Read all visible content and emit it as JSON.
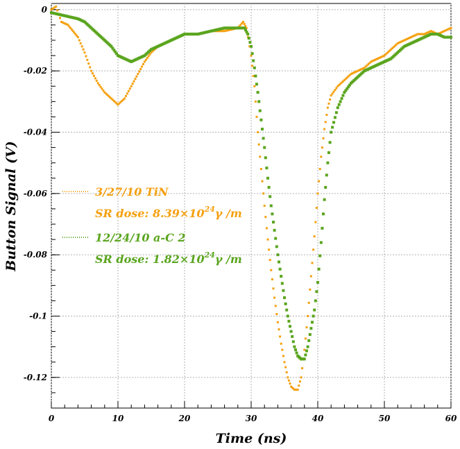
{
  "chart_data": {
    "type": "scatter",
    "xlabel": "Time (ns)",
    "ylabel": "Button Signal (V)",
    "xlim": [
      0,
      60
    ],
    "ylim": [
      -0.13,
      0.002
    ],
    "grid": true,
    "legend_position": "middle-left",
    "xticks": [
      0,
      10,
      20,
      30,
      40,
      50,
      60
    ],
    "xtick_labels": [
      "0",
      "10",
      "20",
      "30",
      "40",
      "50",
      "60"
    ],
    "yticks": [
      0,
      -0.02,
      -0.04,
      -0.06,
      -0.08,
      -0.1,
      -0.12
    ],
    "ytick_labels": [
      "0",
      "-0.02",
      "-0.04",
      "-0.06",
      "-0.08",
      "-0.1",
      "-0.12"
    ],
    "series": [
      {
        "name": "3/27/10 TiN",
        "dose_prefix": "SR dose: 8.39×10",
        "dose_exp": "24",
        "dose_suffix": "γ /m",
        "color": "#f5a00f",
        "points": [
          [
            0,
            0
          ],
          [
            0.7,
            0.001
          ],
          [
            1.5,
            -0.004
          ],
          [
            2.5,
            -0.005
          ],
          [
            4,
            -0.009
          ],
          [
            5,
            -0.014
          ],
          [
            6,
            -0.02
          ],
          [
            7,
            -0.024
          ],
          [
            8,
            -0.027
          ],
          [
            9,
            -0.029
          ],
          [
            10,
            -0.031
          ],
          [
            11,
            -0.029
          ],
          [
            12,
            -0.025
          ],
          [
            13,
            -0.021
          ],
          [
            14,
            -0.017
          ],
          [
            15,
            -0.014
          ],
          [
            16,
            -0.012
          ],
          [
            17,
            -0.011
          ],
          [
            18,
            -0.01
          ],
          [
            19,
            -0.009
          ],
          [
            20,
            -0.008
          ],
          [
            22,
            -0.008
          ],
          [
            24,
            -0.007
          ],
          [
            26,
            -0.007
          ],
          [
            28,
            -0.006
          ],
          [
            28.8,
            -0.004
          ],
          [
            29.3,
            -0.006
          ],
          [
            30,
            -0.015
          ],
          [
            30.5,
            -0.025
          ],
          [
            31,
            -0.04
          ],
          [
            31.5,
            -0.052
          ],
          [
            32,
            -0.064
          ],
          [
            32.5,
            -0.075
          ],
          [
            33,
            -0.085
          ],
          [
            33.5,
            -0.094
          ],
          [
            34,
            -0.102
          ],
          [
            34.5,
            -0.109
          ],
          [
            35,
            -0.115
          ],
          [
            35.5,
            -0.12
          ],
          [
            36,
            -0.123
          ],
          [
            36.5,
            -0.124
          ],
          [
            37,
            -0.124
          ],
          [
            37.5,
            -0.12
          ],
          [
            38,
            -0.111
          ],
          [
            38.5,
            -0.1
          ],
          [
            39,
            -0.087
          ],
          [
            39.5,
            -0.074
          ],
          [
            40,
            -0.06
          ],
          [
            40.5,
            -0.048
          ],
          [
            41,
            -0.039
          ],
          [
            41.5,
            -0.032
          ],
          [
            42,
            -0.028
          ],
          [
            43,
            -0.025
          ],
          [
            44,
            -0.023
          ],
          [
            45,
            -0.021
          ],
          [
            46,
            -0.02
          ],
          [
            47,
            -0.019
          ],
          [
            48,
            -0.017
          ],
          [
            49,
            -0.016
          ],
          [
            50,
            -0.015
          ],
          [
            51,
            -0.013
          ],
          [
            52,
            -0.011
          ],
          [
            53,
            -0.01
          ],
          [
            54,
            -0.009
          ],
          [
            55,
            -0.008
          ],
          [
            56,
            -0.008
          ],
          [
            57,
            -0.007
          ],
          [
            58,
            -0.008
          ],
          [
            59,
            -0.007
          ],
          [
            60,
            -0.006
          ]
        ]
      },
      {
        "name": "12/24/10 a-C 2",
        "dose_prefix": "SR dose: 1.82×10",
        "dose_exp": "24",
        "dose_suffix": "γ /m",
        "color": "#5aa51e",
        "points": [
          [
            0,
            -0.001
          ],
          [
            2,
            -0.002
          ],
          [
            4,
            -0.003
          ],
          [
            5,
            -0.004
          ],
          [
            6,
            -0.006
          ],
          [
            7,
            -0.008
          ],
          [
            8,
            -0.01
          ],
          [
            9,
            -0.012
          ],
          [
            10,
            -0.015
          ],
          [
            11,
            -0.016
          ],
          [
            12,
            -0.017
          ],
          [
            13,
            -0.016
          ],
          [
            14,
            -0.015
          ],
          [
            15,
            -0.013
          ],
          [
            16,
            -0.012
          ],
          [
            17,
            -0.011
          ],
          [
            18,
            -0.01
          ],
          [
            19,
            -0.009
          ],
          [
            20,
            -0.008
          ],
          [
            22,
            -0.008
          ],
          [
            24,
            -0.007
          ],
          [
            26,
            -0.006
          ],
          [
            28,
            -0.006
          ],
          [
            29,
            -0.006
          ],
          [
            29.5,
            -0.008
          ],
          [
            30,
            -0.012
          ],
          [
            30.5,
            -0.019
          ],
          [
            31,
            -0.027
          ],
          [
            31.5,
            -0.036
          ],
          [
            32,
            -0.045
          ],
          [
            32.5,
            -0.055
          ],
          [
            33,
            -0.064
          ],
          [
            33.5,
            -0.072
          ],
          [
            34,
            -0.08
          ],
          [
            34.5,
            -0.087
          ],
          [
            35,
            -0.094
          ],
          [
            35.5,
            -0.1
          ],
          [
            36,
            -0.105
          ],
          [
            36.5,
            -0.11
          ],
          [
            37,
            -0.113
          ],
          [
            37.5,
            -0.114
          ],
          [
            38,
            -0.114
          ],
          [
            38.5,
            -0.11
          ],
          [
            39,
            -0.104
          ],
          [
            39.5,
            -0.098
          ],
          [
            40,
            -0.089
          ],
          [
            40.5,
            -0.076
          ],
          [
            41,
            -0.062
          ],
          [
            41.5,
            -0.05
          ],
          [
            42,
            -0.04
          ],
          [
            43,
            -0.032
          ],
          [
            44,
            -0.027
          ],
          [
            45,
            -0.024
          ],
          [
            46,
            -0.022
          ],
          [
            47,
            -0.02
          ],
          [
            48,
            -0.019
          ],
          [
            49,
            -0.018
          ],
          [
            50,
            -0.017
          ],
          [
            51,
            -0.016
          ],
          [
            52,
            -0.014
          ],
          [
            53,
            -0.012
          ],
          [
            54,
            -0.011
          ],
          [
            55,
            -0.01
          ],
          [
            56,
            -0.009
          ],
          [
            57,
            -0.008
          ],
          [
            58,
            -0.008
          ],
          [
            59,
            -0.009
          ],
          [
            60,
            -0.009
          ]
        ]
      }
    ]
  }
}
